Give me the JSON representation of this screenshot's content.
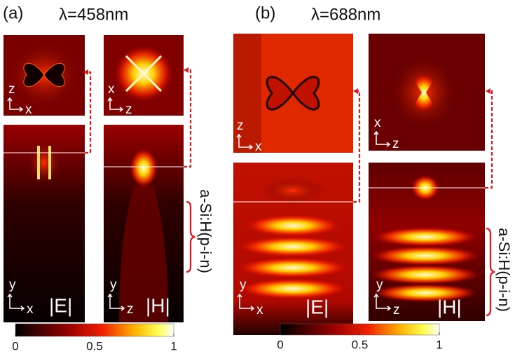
{
  "panels": [
    {
      "label": "(a)",
      "title": "λ=458nm",
      "layer_label": "a-Si:H(p-i-n)",
      "maps": [
        {
          "field": "|E|",
          "top_axes": [
            "z",
            "x"
          ],
          "bottom_axes": [
            "y",
            "x"
          ]
        },
        {
          "field": "|H|",
          "top_axes": [
            "x",
            "z"
          ],
          "bottom_axes": [
            "y",
            "z"
          ]
        }
      ],
      "colorbar": {
        "ticks": [
          0,
          0.5,
          1
        ]
      }
    },
    {
      "label": "(b)",
      "title": "λ=688nm",
      "layer_label": "a-Si:H(p-i-n)",
      "maps": [
        {
          "field": "|E|",
          "top_axes": [
            "z",
            "x"
          ],
          "bottom_axes": [
            "y",
            "x"
          ]
        },
        {
          "field": "|H|",
          "top_axes": [
            "x",
            "z"
          ],
          "bottom_axes": [
            "y",
            "z"
          ]
        }
      ],
      "colorbar": {
        "ticks": [
          0,
          0.5,
          1
        ]
      }
    }
  ]
}
